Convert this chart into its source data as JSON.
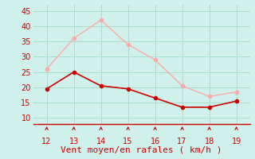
{
  "x": [
    12,
    13,
    14,
    15,
    16,
    17,
    18,
    19
  ],
  "y_rafales": [
    26,
    36,
    42,
    34,
    29,
    20.5,
    17,
    18.5
  ],
  "y_moyen": [
    19.5,
    25,
    20.5,
    19.5,
    16.5,
    13.5,
    13.5,
    15.5
  ],
  "color_rafales": "#ffaaaa",
  "color_moyen": "#cc0000",
  "xlabel": "Vent moyen/en rafales ( km/h )",
  "xlabel_color": "#cc0000",
  "background_color": "#cff0eb",
  "grid_color": "#aaddcc",
  "ylim": [
    8,
    47
  ],
  "yticks": [
    10,
    15,
    20,
    25,
    30,
    35,
    40,
    45
  ],
  "xlim": [
    11.5,
    19.5
  ],
  "xticks": [
    12,
    13,
    14,
    15,
    16,
    17,
    18,
    19
  ],
  "tick_color": "#cc0000",
  "tick_fontsize": 7,
  "xlabel_fontsize": 8,
  "marker_size": 3
}
